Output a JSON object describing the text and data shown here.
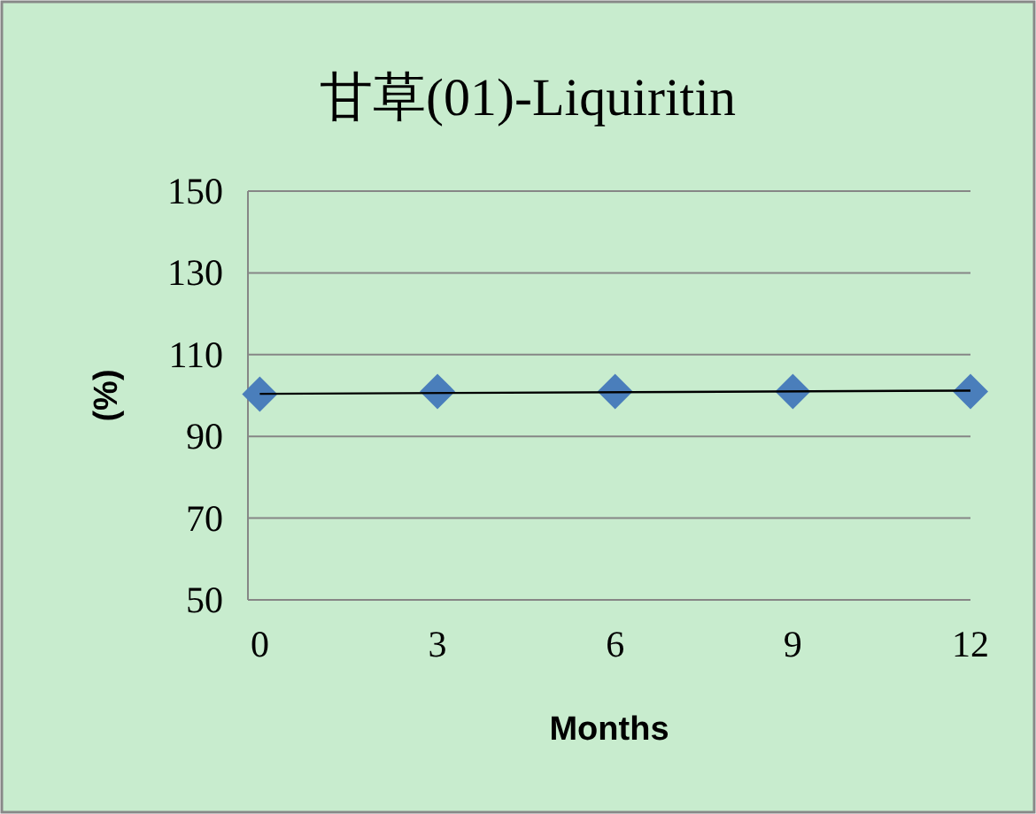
{
  "chart_data": {
    "type": "scatter",
    "title": "甘草(01)-Liquiritin",
    "xlabel": "Months",
    "ylabel": "(%)",
    "xlim": [
      -0.2,
      12
    ],
    "xticks": [
      0,
      3,
      6,
      9,
      12
    ],
    "ylim": [
      50,
      150
    ],
    "yticks": [
      50,
      70,
      90,
      110,
      130,
      150
    ],
    "grid": "y",
    "marker": "diamond",
    "series": [
      {
        "type": "scatter",
        "color": "#4a7ebb",
        "x": [
          0,
          3,
          6,
          9,
          12
        ],
        "values": [
          100.3,
          101,
          101,
          101,
          101
        ]
      },
      {
        "type": "line",
        "color": "#000000",
        "marker": "none",
        "x": [
          0,
          12
        ],
        "values": [
          100.4,
          101.2
        ]
      }
    ]
  }
}
